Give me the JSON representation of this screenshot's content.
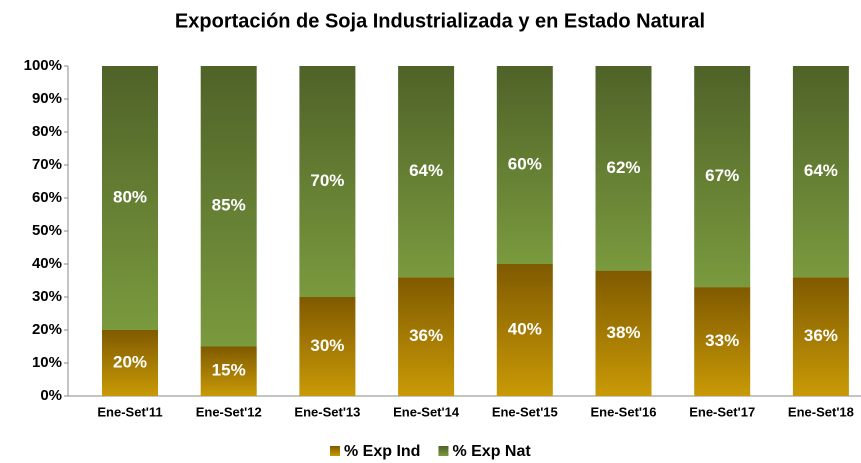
{
  "chart_data": {
    "type": "stacked_bar",
    "title": "Exportación de Soja Industrializada y en Estado Natural",
    "categories": [
      "Ene-Set'11",
      "Ene-Set'12",
      "Ene-Set'13",
      "Ene-Set'14",
      "Ene-Set'15",
      "Ene-Set'16",
      "Ene-Set'17",
      "Ene-Set'18"
    ],
    "series": [
      {
        "name": "% Exp Ind",
        "color": "#c99a06",
        "color_top": "#7f5a00",
        "values": [
          20,
          15,
          30,
          36,
          40,
          38,
          33,
          36
        ],
        "value_labels": [
          "20%",
          "15%",
          "30%",
          "36%",
          "40%",
          "38%",
          "33%",
          "36%"
        ]
      },
      {
        "name": "% Exp Nat",
        "color": "#7a9a3e",
        "color_top": "#4f6228",
        "values": [
          80,
          85,
          70,
          64,
          60,
          62,
          67,
          64
        ],
        "value_labels": [
          "80%",
          "85%",
          "70%",
          "64%",
          "60%",
          "62%",
          "67%",
          "64%"
        ]
      }
    ],
    "ylim": [
      0,
      100
    ],
    "yticks": [
      {
        "value": 0,
        "label": "0%"
      },
      {
        "value": 10,
        "label": "10%"
      },
      {
        "value": 20,
        "label": "20%"
      },
      {
        "value": 30,
        "label": "30%"
      },
      {
        "value": 40,
        "label": "40%"
      },
      {
        "value": 50,
        "label": "50%"
      },
      {
        "value": 60,
        "label": "60%"
      },
      {
        "value": 70,
        "label": "70%"
      },
      {
        "value": 80,
        "label": "80%"
      },
      {
        "value": 90,
        "label": "90%"
      },
      {
        "value": 100,
        "label": "100%"
      }
    ],
    "legend": "bottom"
  }
}
